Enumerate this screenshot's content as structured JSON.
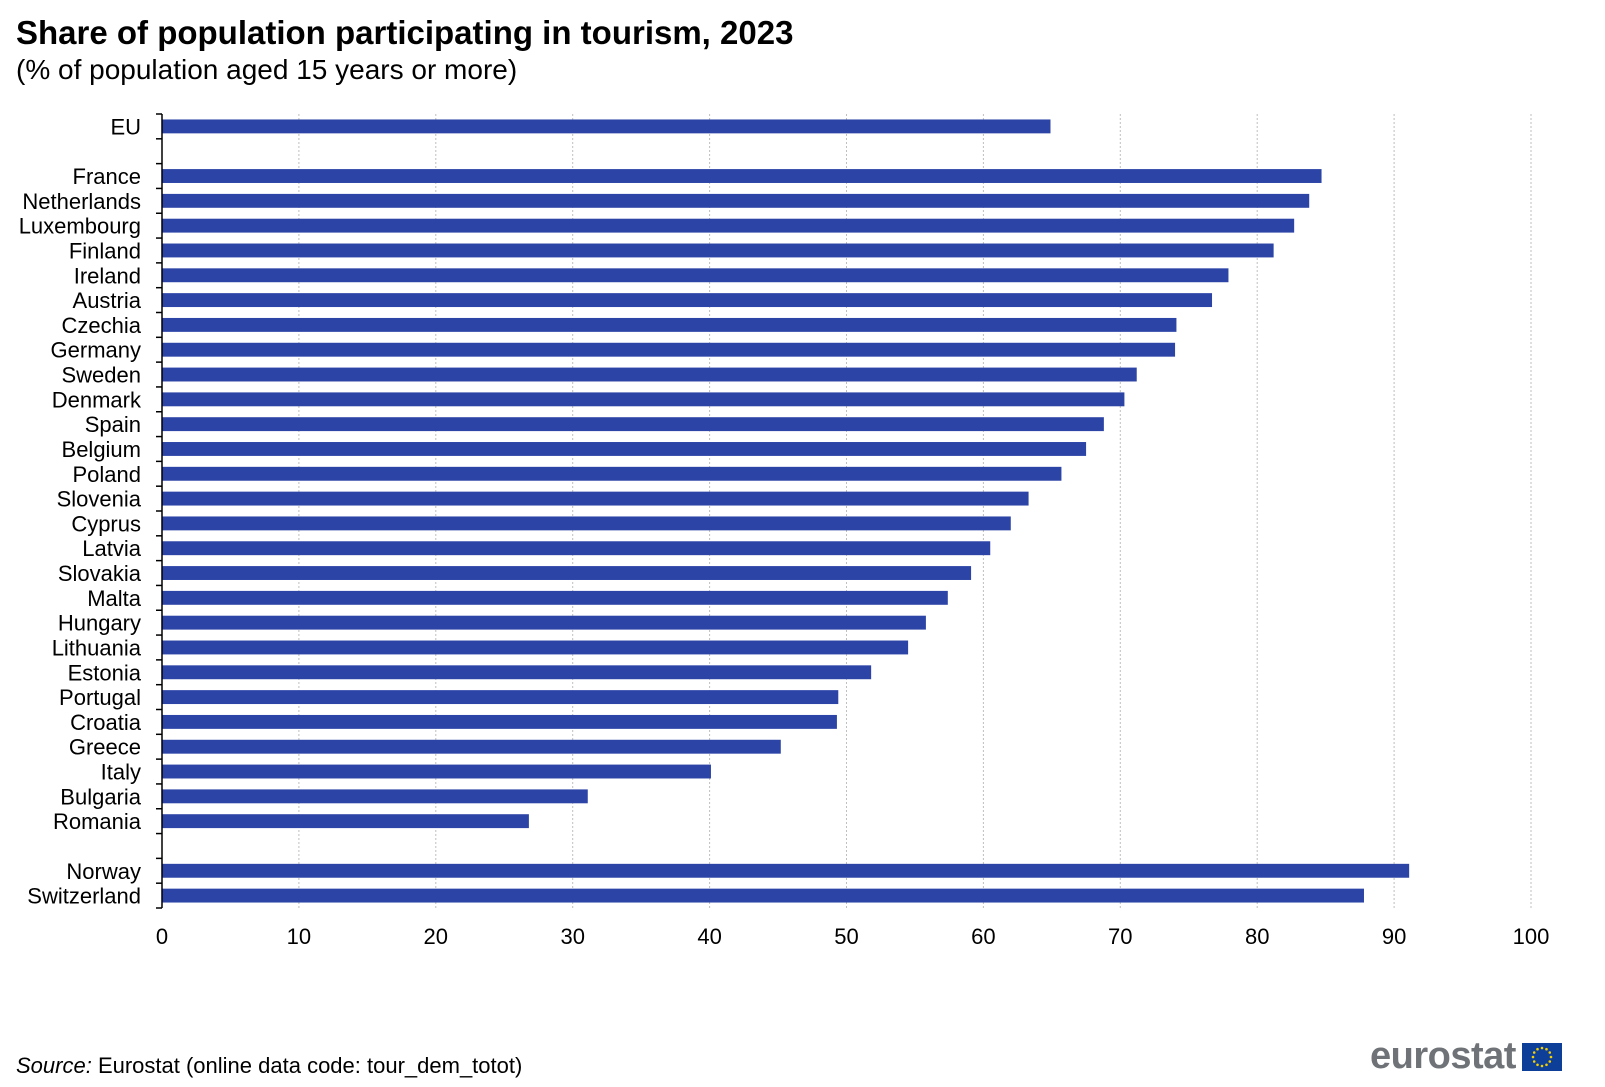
{
  "header": {
    "title": "Share of population participating in tourism, 2023",
    "subtitle": "(% of population aged 15 years or more)"
  },
  "footer": {
    "source_label": "Source:",
    "source_text": " Eurostat (online data code: tour_dem_totot)",
    "logo_text": "eurostat"
  },
  "colors": {
    "bar": "#2c44a6",
    "grid": "#bfbfbf",
    "axis": "#000000",
    "flag": "#0e3f98",
    "star": "#f5d000"
  },
  "chart_data": {
    "type": "bar",
    "orientation": "horizontal",
    "categories": [
      "EU",
      "",
      "France",
      "Netherlands",
      "Luxembourg",
      "Finland",
      "Ireland",
      "Austria",
      "Czechia",
      "Germany",
      "Sweden",
      "Denmark",
      "Spain",
      "Belgium",
      "Poland",
      "Slovenia",
      "Cyprus",
      "Latvia",
      "Slovakia",
      "Malta",
      "Hungary",
      "Lithuania",
      "Estonia",
      "Portugal",
      "Croatia",
      "Greece",
      "Italy",
      "Bulgaria",
      "Romania",
      "",
      "Norway",
      "Switzerland"
    ],
    "values": [
      64.9,
      null,
      84.7,
      83.8,
      82.7,
      81.2,
      77.9,
      76.7,
      74.1,
      74.0,
      71.2,
      70.3,
      68.8,
      67.5,
      65.7,
      63.3,
      62.0,
      60.5,
      59.1,
      57.4,
      55.8,
      54.5,
      51.8,
      49.4,
      49.3,
      45.2,
      40.1,
      31.1,
      26.8,
      null,
      91.1,
      87.8
    ],
    "xlim": [
      0,
      100
    ],
    "xticks": [
      0,
      10,
      20,
      30,
      40,
      50,
      60,
      70,
      80,
      90,
      100
    ],
    "xlabel": "",
    "ylabel": "",
    "grid": "vertical dashed",
    "legend": "none"
  }
}
